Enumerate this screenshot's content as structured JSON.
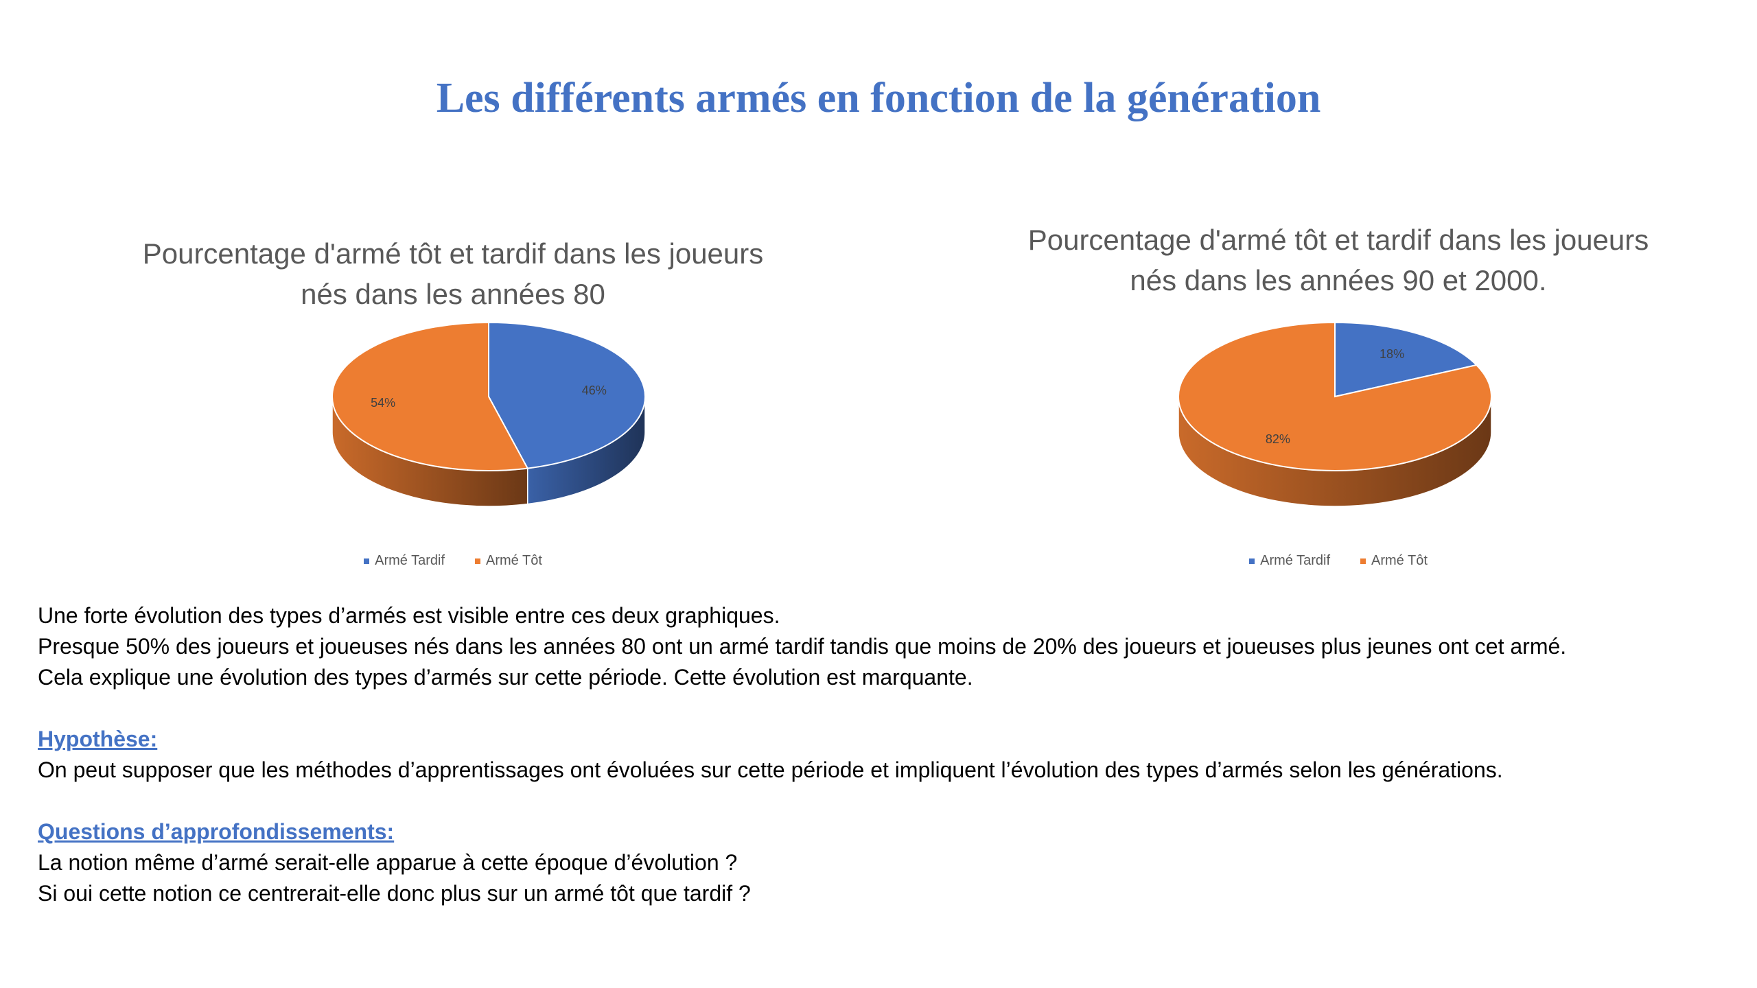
{
  "page": {
    "title": "Les différents armés en fonction de la génération"
  },
  "colors": {
    "tardif": "#4472C4",
    "tot": "#ED7D31",
    "title": "#4472C4"
  },
  "chart_data": [
    {
      "type": "pie",
      "title_line1": "Pourcentage d'armé tôt et tardif dans les joueurs",
      "title_line2": "nés dans les années 80",
      "categories": [
        "Armé Tardif",
        "Armé Tôt"
      ],
      "values": [
        46,
        54
      ],
      "data_labels": [
        "46%",
        "54%"
      ],
      "legend_position": "bottom",
      "style": "3d"
    },
    {
      "type": "pie",
      "title_line1": "Pourcentage d'armé tôt et tardif dans les joueurs",
      "title_line2": "nés dans les années 90 et 2000.",
      "categories": [
        "Armé Tardif",
        "Armé Tôt"
      ],
      "values": [
        18,
        82
      ],
      "data_labels": [
        "18%",
        "82%"
      ],
      "legend_position": "bottom",
      "style": "3d"
    }
  ],
  "body": {
    "line1": "Une forte évolution des types d’armés est visible entre ces deux graphiques.",
    "line2": "Presque 50% des joueurs et joueuses nés dans les années 80 ont un armé tardif tandis que moins de 20% des joueurs et joueuses plus jeunes ont cet armé.",
    "line3": "Cela explique une évolution des types d’armés sur cette période. Cette évolution est marquante.",
    "hypothesis_heading": "Hypothèse:",
    "hypothesis_text": "On peut supposer que les méthodes d’apprentissages ont évoluées sur cette période et impliquent l’évolution des types d’armés selon les générations.",
    "questions_heading": "Questions d’approfondissements:",
    "question1": "La notion même d’armé serait-elle apparue à cette époque d’évolution ?",
    "question2": "Si oui cette notion ce centrerait-elle donc plus sur un armé tôt que tardif ?"
  }
}
